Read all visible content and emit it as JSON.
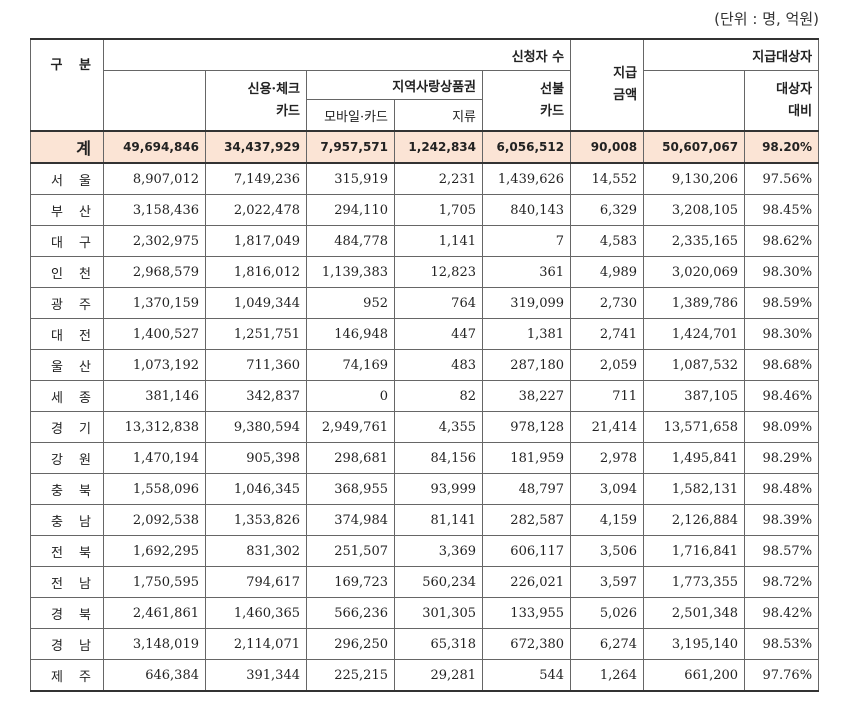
{
  "unit_note": "(단위 : 명, 억원)",
  "headers": {
    "category": "구 분",
    "applicants": "신청자 수",
    "credit_check": [
      "신용·체크",
      "카드"
    ],
    "local_voucher": "지역사랑상품권",
    "mobile_card": "모바일·카드",
    "paper": "지류",
    "prepaid": [
      "선불",
      "카드"
    ],
    "payment_amount": [
      "지급",
      "금액"
    ],
    "eligible": "지급대상자",
    "ratio": [
      "대상자",
      "대비"
    ]
  },
  "rows": [
    {
      "region": "계",
      "total": "49,694,846",
      "credit": "34,437,929",
      "mobile": "7,957,571",
      "paper": "1,242,834",
      "prepaid": "6,056,512",
      "amount": "90,008",
      "eligible": "50,607,067",
      "ratio": "98.20%"
    },
    {
      "region": "서 울",
      "total": "8,907,012",
      "credit": "7,149,236",
      "mobile": "315,919",
      "paper": "2,231",
      "prepaid": "1,439,626",
      "amount": "14,552",
      "eligible": "9,130,206",
      "ratio": "97.56%"
    },
    {
      "region": "부 산",
      "total": "3,158,436",
      "credit": "2,022,478",
      "mobile": "294,110",
      "paper": "1,705",
      "prepaid": "840,143",
      "amount": "6,329",
      "eligible": "3,208,105",
      "ratio": "98.45%"
    },
    {
      "region": "대 구",
      "total": "2,302,975",
      "credit": "1,817,049",
      "mobile": "484,778",
      "paper": "1,141",
      "prepaid": "7",
      "amount": "4,583",
      "eligible": "2,335,165",
      "ratio": "98.62%"
    },
    {
      "region": "인 천",
      "total": "2,968,579",
      "credit": "1,816,012",
      "mobile": "1,139,383",
      "paper": "12,823",
      "prepaid": "361",
      "amount": "4,989",
      "eligible": "3,020,069",
      "ratio": "98.30%"
    },
    {
      "region": "광 주",
      "total": "1,370,159",
      "credit": "1,049,344",
      "mobile": "952",
      "paper": "764",
      "prepaid": "319,099",
      "amount": "2,730",
      "eligible": "1,389,786",
      "ratio": "98.59%"
    },
    {
      "region": "대 전",
      "total": "1,400,527",
      "credit": "1,251,751",
      "mobile": "146,948",
      "paper": "447",
      "prepaid": "1,381",
      "amount": "2,741",
      "eligible": "1,424,701",
      "ratio": "98.30%"
    },
    {
      "region": "울 산",
      "total": "1,073,192",
      "credit": "711,360",
      "mobile": "74,169",
      "paper": "483",
      "prepaid": "287,180",
      "amount": "2,059",
      "eligible": "1,087,532",
      "ratio": "98.68%"
    },
    {
      "region": "세 종",
      "total": "381,146",
      "credit": "342,837",
      "mobile": "0",
      "paper": "82",
      "prepaid": "38,227",
      "amount": "711",
      "eligible": "387,105",
      "ratio": "98.46%"
    },
    {
      "region": "경 기",
      "total": "13,312,838",
      "credit": "9,380,594",
      "mobile": "2,949,761",
      "paper": "4,355",
      "prepaid": "978,128",
      "amount": "21,414",
      "eligible": "13,571,658",
      "ratio": "98.09%"
    },
    {
      "region": "강 원",
      "total": "1,470,194",
      "credit": "905,398",
      "mobile": "298,681",
      "paper": "84,156",
      "prepaid": "181,959",
      "amount": "2,978",
      "eligible": "1,495,841",
      "ratio": "98.29%"
    },
    {
      "region": "충 북",
      "total": "1,558,096",
      "credit": "1,046,345",
      "mobile": "368,955",
      "paper": "93,999",
      "prepaid": "48,797",
      "amount": "3,094",
      "eligible": "1,582,131",
      "ratio": "98.48%"
    },
    {
      "region": "충 남",
      "total": "2,092,538",
      "credit": "1,353,826",
      "mobile": "374,984",
      "paper": "81,141",
      "prepaid": "282,587",
      "amount": "4,159",
      "eligible": "2,126,884",
      "ratio": "98.39%"
    },
    {
      "region": "전 북",
      "total": "1,692,295",
      "credit": "831,302",
      "mobile": "251,507",
      "paper": "3,369",
      "prepaid": "606,117",
      "amount": "3,506",
      "eligible": "1,716,841",
      "ratio": "98.57%"
    },
    {
      "region": "전 남",
      "total": "1,750,595",
      "credit": "794,617",
      "mobile": "169,723",
      "paper": "560,234",
      "prepaid": "226,021",
      "amount": "3,597",
      "eligible": "1,773,355",
      "ratio": "98.72%"
    },
    {
      "region": "경 북",
      "total": "2,461,861",
      "credit": "1,460,365",
      "mobile": "566,236",
      "paper": "301,305",
      "prepaid": "133,955",
      "amount": "5,026",
      "eligible": "2,501,348",
      "ratio": "98.42%"
    },
    {
      "region": "경 남",
      "total": "3,148,019",
      "credit": "2,114,071",
      "mobile": "296,250",
      "paper": "65,318",
      "prepaid": "672,380",
      "amount": "6,274",
      "eligible": "3,195,140",
      "ratio": "98.53%"
    },
    {
      "region": "제 주",
      "total": "646,384",
      "credit": "391,344",
      "mobile": "225,215",
      "paper": "29,281",
      "prepaid": "544",
      "amount": "1,264",
      "eligible": "661,200",
      "ratio": "97.76%"
    }
  ]
}
